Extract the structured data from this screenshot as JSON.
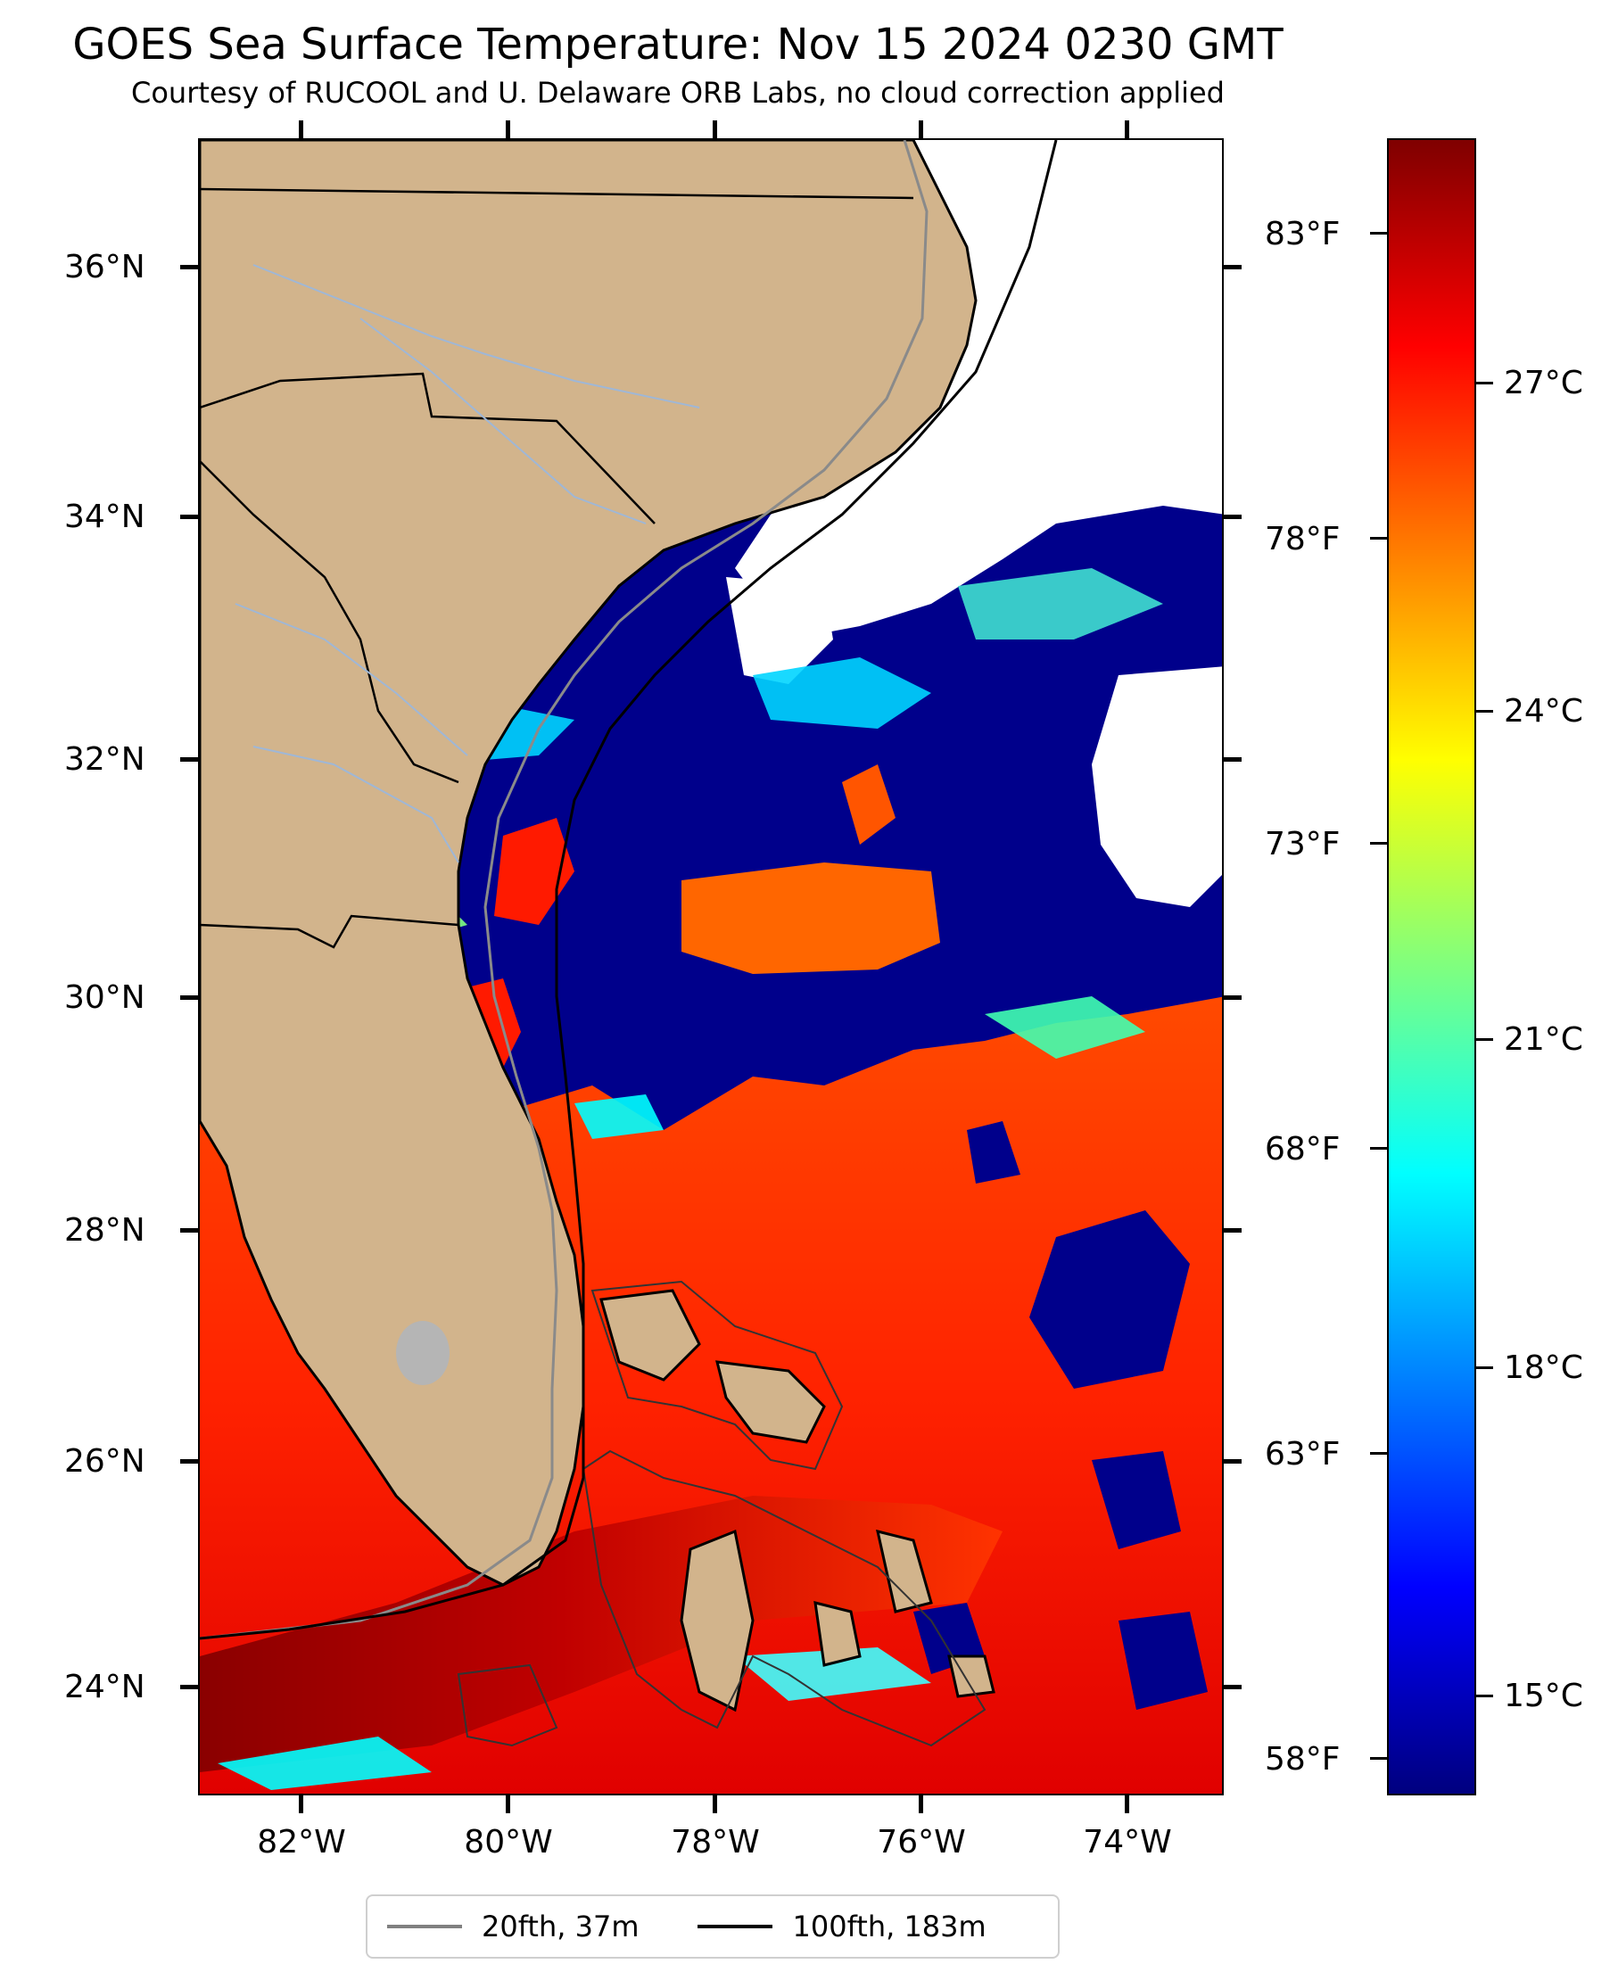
{
  "title": "GOES Sea Surface Temperature: Nov 15 2024 0230 GMT",
  "subtitle": "Courtesy of RUCOOL and U. Delaware ORB Labs, no cloud correction applied",
  "lat_labels": [
    "36°N",
    "34°N",
    "32°N",
    "30°N",
    "28°N",
    "26°N",
    "24°N"
  ],
  "lon_labels": [
    "82°W",
    "80°W",
    "78°W",
    "76°W",
    "74°W"
  ],
  "colorbar": {
    "fahrenheit_labels": [
      "83°F",
      "78°F",
      "73°F",
      "68°F",
      "63°F",
      "58°F"
    ],
    "celsius_labels": [
      "27°C",
      "24°C",
      "21°C",
      "18°C",
      "15°C"
    ],
    "colors": [
      "#00007f",
      "#0000ff",
      "#007fff",
      "#00ffff",
      "#7fff7f",
      "#ffff00",
      "#ff7f00",
      "#ff0000",
      "#7f0000"
    ]
  },
  "legend": [
    {
      "label": "20fth, 37m",
      "color": "#808080"
    },
    {
      "label": "100fth, 183m",
      "color": "#000000"
    }
  ],
  "colors": {
    "land": "#d2b48c",
    "cold_water": "#00008b",
    "warm_water": "#ff3300",
    "hot_water": "#990000",
    "cloud": "#ffffff",
    "rivers": "#9fb7d6",
    "borders": "#000000"
  }
}
